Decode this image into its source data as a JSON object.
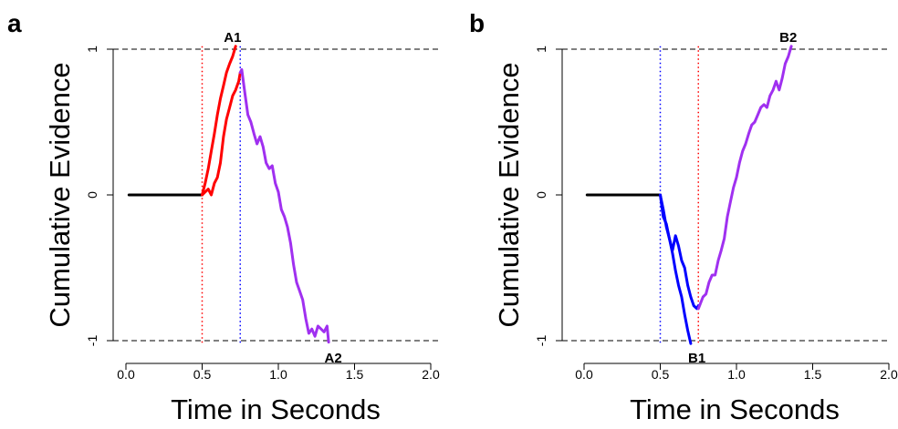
{
  "chart_data": [
    {
      "type": "line",
      "panel_label": "a",
      "xlabel": "Time in Seconds",
      "ylabel": "Cumulative Evidence",
      "xlim": [
        0.0,
        2.0
      ],
      "ylim": [
        -1,
        1
      ],
      "xticks": [
        "0.0",
        "0.5",
        "1.0",
        "1.5",
        "2.0"
      ],
      "yticks": [
        "-1",
        "0",
        "1"
      ],
      "reference_lines": [
        {
          "axis": "y",
          "value": 1,
          "style": "dashed",
          "color": "#000000"
        },
        {
          "axis": "y",
          "value": -1,
          "style": "dashed",
          "color": "#000000"
        },
        {
          "axis": "x",
          "value": 0.5,
          "style": "dotted",
          "color": "#ff0000"
        },
        {
          "axis": "x",
          "value": 0.75,
          "style": "dotted",
          "color": "#0000ff"
        }
      ],
      "series": [
        {
          "color": "#000000",
          "x": [
            0.02,
            0.5
          ],
          "y": [
            0,
            0
          ]
        },
        {
          "color": "#ff0000",
          "x": [
            0.5,
            0.52,
            0.54,
            0.56,
            0.58,
            0.6,
            0.62,
            0.64,
            0.66,
            0.68,
            0.7,
            0.72
          ],
          "y": [
            0.0,
            0.08,
            0.18,
            0.3,
            0.42,
            0.55,
            0.66,
            0.75,
            0.84,
            0.9,
            0.95,
            1.02
          ]
        },
        {
          "color": "#ff0000",
          "x": [
            0.5,
            0.52,
            0.54,
            0.56,
            0.58,
            0.6,
            0.62,
            0.64,
            0.66,
            0.68,
            0.7,
            0.72,
            0.74,
            0.75
          ],
          "y": [
            0.0,
            0.02,
            0.04,
            0.0,
            0.08,
            0.12,
            0.22,
            0.4,
            0.52,
            0.6,
            0.68,
            0.72,
            0.78,
            0.84
          ]
        },
        {
          "color": "#a030f0",
          "x": [
            0.75,
            0.76,
            0.78,
            0.8,
            0.82,
            0.84,
            0.86,
            0.88,
            0.9,
            0.92,
            0.94,
            0.96,
            0.98,
            1.0,
            1.02,
            1.04,
            1.06,
            1.08,
            1.1,
            1.12,
            1.14,
            1.16,
            1.18,
            1.2,
            1.22,
            1.24,
            1.26,
            1.28,
            1.3,
            1.32,
            1.33
          ],
          "y": [
            0.84,
            0.86,
            0.7,
            0.55,
            0.5,
            0.42,
            0.35,
            0.4,
            0.33,
            0.22,
            0.18,
            0.2,
            0.08,
            0.02,
            -0.1,
            -0.15,
            -0.22,
            -0.33,
            -0.48,
            -0.6,
            -0.66,
            -0.72,
            -0.85,
            -0.95,
            -0.92,
            -0.97,
            -0.9,
            -0.92,
            -0.94,
            -0.9,
            -1.01
          ]
        }
      ],
      "annotations": [
        {
          "text": "A1",
          "x": 0.7,
          "y": 1.08
        },
        {
          "text": "A2",
          "x": 1.36,
          "y": -1.12
        }
      ]
    },
    {
      "type": "line",
      "panel_label": "b",
      "xlabel": "Time in Seconds",
      "ylabel": "Cumulative Evidence",
      "xlim": [
        0.0,
        2.0
      ],
      "ylim": [
        -1,
        1
      ],
      "xticks": [
        "0.0",
        "0.5",
        "1.0",
        "1.5",
        "2.0"
      ],
      "yticks": [
        "-1",
        "0",
        "1"
      ],
      "reference_lines": [
        {
          "axis": "y",
          "value": 1,
          "style": "dashed",
          "color": "#000000"
        },
        {
          "axis": "y",
          "value": -1,
          "style": "dashed",
          "color": "#000000"
        },
        {
          "axis": "x",
          "value": 0.5,
          "style": "dotted",
          "color": "#0000ff"
        },
        {
          "axis": "x",
          "value": 0.75,
          "style": "dotted",
          "color": "#ff0000"
        }
      ],
      "series": [
        {
          "color": "#000000",
          "x": [
            0.02,
            0.5
          ],
          "y": [
            0,
            0
          ]
        },
        {
          "color": "#0000ff",
          "x": [
            0.5,
            0.52,
            0.54,
            0.56,
            0.58,
            0.6,
            0.62,
            0.64,
            0.66,
            0.68,
            0.7,
            0.72,
            0.74,
            0.75
          ],
          "y": [
            0.0,
            -0.1,
            -0.22,
            -0.3,
            -0.38,
            -0.28,
            -0.35,
            -0.45,
            -0.5,
            -0.62,
            -0.7,
            -0.76,
            -0.78,
            -0.76
          ]
        },
        {
          "color": "#0000ff",
          "x": [
            0.5,
            0.52,
            0.54,
            0.56,
            0.58,
            0.6,
            0.62,
            0.64,
            0.66,
            0.68,
            0.7
          ],
          "y": [
            0.0,
            -0.15,
            -0.2,
            -0.3,
            -0.4,
            -0.52,
            -0.62,
            -0.7,
            -0.82,
            -0.93,
            -1.02
          ]
        },
        {
          "color": "#a030f0",
          "x": [
            0.75,
            0.78,
            0.8,
            0.82,
            0.84,
            0.86,
            0.88,
            0.9,
            0.92,
            0.94,
            0.96,
            0.98,
            1.0,
            1.02,
            1.04,
            1.06,
            1.08,
            1.1,
            1.12,
            1.14,
            1.16,
            1.18,
            1.2,
            1.22,
            1.24,
            1.26,
            1.28,
            1.3,
            1.32,
            1.34,
            1.36
          ],
          "y": [
            -0.78,
            -0.7,
            -0.68,
            -0.6,
            -0.55,
            -0.55,
            -0.45,
            -0.38,
            -0.3,
            -0.15,
            -0.05,
            0.05,
            0.12,
            0.22,
            0.3,
            0.35,
            0.42,
            0.48,
            0.5,
            0.55,
            0.6,
            0.62,
            0.6,
            0.68,
            0.72,
            0.78,
            0.72,
            0.8,
            0.9,
            0.95,
            1.02
          ]
        }
      ],
      "annotations": [
        {
          "text": "B2",
          "x": 1.34,
          "y": 1.08
        },
        {
          "text": "B1",
          "x": 0.74,
          "y": -1.12
        }
      ]
    }
  ]
}
